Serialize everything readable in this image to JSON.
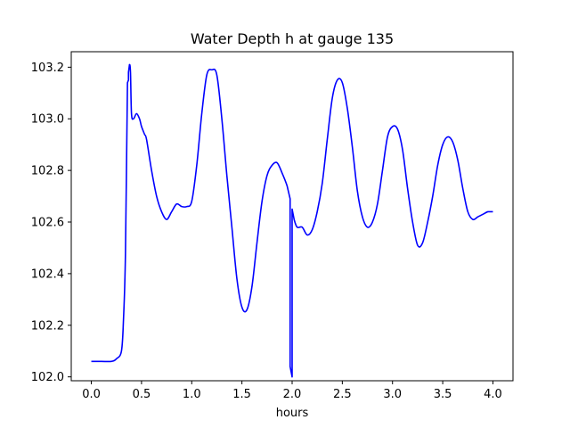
{
  "chart_data": {
    "type": "line",
    "title": "Water Depth h at gauge 135",
    "xlabel": "hours",
    "ylabel": "",
    "xlim": [
      -0.2,
      4.2
    ],
    "ylim": [
      101.985,
      103.26
    ],
    "xticks": [
      0.0,
      0.5,
      1.0,
      1.5,
      2.0,
      2.5,
      3.0,
      3.5,
      4.0
    ],
    "xtick_labels": [
      "0.0",
      "0.5",
      "1.0",
      "1.5",
      "2.0",
      "2.5",
      "3.0",
      "3.5",
      "4.0"
    ],
    "yticks": [
      102.0,
      102.2,
      102.4,
      102.6,
      102.8,
      103.0,
      103.2
    ],
    "ytick_labels": [
      "102.0",
      "102.2",
      "102.4",
      "102.6",
      "102.8",
      "103.0",
      "103.2"
    ],
    "grid": false,
    "series": [
      {
        "color": "#0000ff",
        "x": [
          0.0,
          0.1,
          0.2,
          0.25,
          0.3,
          0.32,
          0.34,
          0.36,
          0.37,
          0.37,
          0.38,
          0.39,
          0.4,
          0.42,
          0.45,
          0.48,
          0.5,
          0.53,
          0.55,
          0.6,
          0.65,
          0.7,
          0.75,
          0.8,
          0.85,
          0.9,
          0.95,
          1.0,
          1.05,
          1.1,
          1.15,
          1.2,
          1.25,
          1.3,
          1.35,
          1.4,
          1.45,
          1.5,
          1.55,
          1.6,
          1.65,
          1.7,
          1.75,
          1.8,
          1.85,
          1.9,
          1.95,
          1.98,
          1.98,
          2.0,
          2.0,
          2.02,
          2.05,
          2.1,
          2.15,
          2.2,
          2.25,
          2.3,
          2.35,
          2.4,
          2.45,
          2.5,
          2.55,
          2.6,
          2.65,
          2.7,
          2.75,
          2.8,
          2.85,
          2.9,
          2.95,
          3.0,
          3.05,
          3.1,
          3.15,
          3.2,
          3.25,
          3.3,
          3.35,
          3.4,
          3.45,
          3.5,
          3.55,
          3.6,
          3.65,
          3.7,
          3.75,
          3.8,
          3.85,
          3.9,
          3.95,
          4.0
        ],
        "y": [
          102.06,
          102.06,
          102.06,
          102.07,
          102.1,
          102.22,
          102.48,
          103.14,
          103.15,
          103.18,
          103.21,
          103.18,
          103.02,
          103.0,
          103.02,
          103.0,
          102.97,
          102.94,
          102.92,
          102.8,
          102.7,
          102.64,
          102.61,
          102.64,
          102.67,
          102.66,
          102.66,
          102.68,
          102.82,
          103.02,
          103.17,
          103.19,
          103.17,
          103.0,
          102.78,
          102.58,
          102.38,
          102.27,
          102.26,
          102.35,
          102.52,
          102.68,
          102.78,
          102.82,
          102.83,
          102.79,
          102.74,
          102.69,
          102.04,
          102.0,
          102.65,
          102.61,
          102.58,
          102.58,
          102.55,
          102.57,
          102.64,
          102.75,
          102.92,
          103.08,
          103.15,
          103.14,
          103.04,
          102.89,
          102.72,
          102.62,
          102.58,
          102.6,
          102.67,
          102.8,
          102.93,
          102.97,
          102.96,
          102.88,
          102.73,
          102.6,
          102.51,
          102.52,
          102.6,
          102.7,
          102.82,
          102.9,
          102.93,
          102.91,
          102.84,
          102.73,
          102.64,
          102.61,
          102.62,
          102.63,
          102.64,
          102.64
        ]
      }
    ]
  }
}
